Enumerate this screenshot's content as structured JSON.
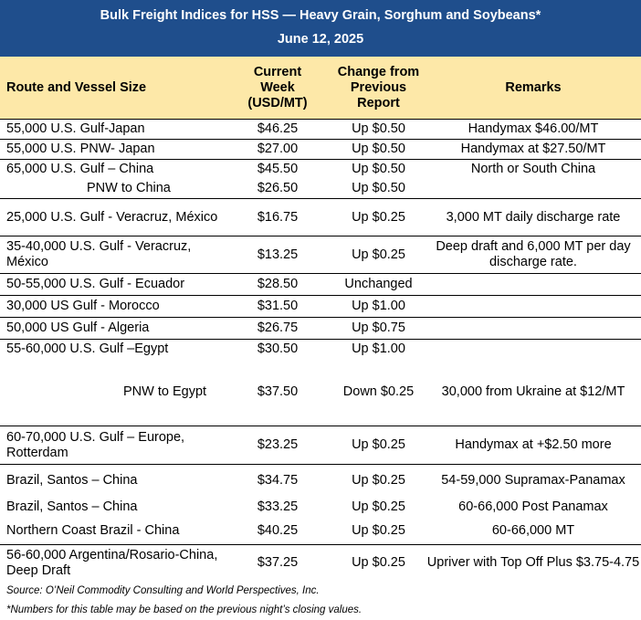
{
  "title": "Bulk Freight Indices for HSS — Heavy Grain, Sorghum and Soybeans*",
  "date": "June 12, 2025",
  "headers": {
    "route": "Route and Vessel Size",
    "current": [
      "Current",
      "Week",
      "(USD/MT)"
    ],
    "change": [
      "Change from",
      "Previous",
      "Report"
    ],
    "remarks": "Remarks"
  },
  "rows": [
    {
      "route": "55,000 U.S. Gulf-Japan",
      "price": "$46.25",
      "change": "Up $0.50",
      "remarks": "Handymax  $46.00/MT"
    },
    {
      "route": "55,000 U.S. PNW- Japan",
      "price": "$27.00",
      "change": "Up $0.50",
      "remarks": "Handymax at $27.50/MT"
    },
    {
      "route": "65,000 U.S. Gulf – China",
      "price": "$45.50",
      "change": "Up $0.50",
      "remarks": "North or South China"
    },
    {
      "route": "PNW to China",
      "price": "$26.50",
      "change": "Up $0.50",
      "remarks": ""
    },
    {
      "route": "25,000 U.S. Gulf - Veracruz, México",
      "price": "$16.75",
      "change": "Up $0.25",
      "remarks": "3,000 MT daily discharge rate"
    },
    {
      "route": "35-40,000 U.S. Gulf - Veracruz, México",
      "price": "$13.25",
      "change": "Up $0.25",
      "remarks": "Deep draft and 6,000 MT per day discharge rate."
    },
    {
      "route": "50-55,000 U.S. Gulf - Ecuador",
      "price": "$28.50",
      "change": "Unchanged",
      "remarks": ""
    },
    {
      "route": "30,000 US Gulf - Morocco",
      "price": "$31.50",
      "change": "Up $1.00",
      "remarks": ""
    },
    {
      "route": "50,000 US Gulf - Algeria",
      "price": "$26.75",
      "change": "Up $0.75",
      "remarks": ""
    },
    {
      "route": "55-60,000 U.S. Gulf –Egypt",
      "price": "$30.50",
      "change": "Up $1.00",
      "remarks": ""
    },
    {
      "route": "PNW to Egypt",
      "price": "$37.50",
      "change": "Down $0.25",
      "remarks": "30,000 from Ukraine at $12/MT"
    },
    {
      "route": "60-70,000 U.S. Gulf – Europe, Rotterdam",
      "price": "$23.25",
      "change": "Up $0.25",
      "remarks": "Handymax at +$2.50 more"
    },
    {
      "route": "Brazil, Santos – China",
      "price": "$34.75",
      "change": "Up $0.25",
      "remarks": "54-59,000 Supramax-Panamax"
    },
    {
      "route": "Brazil, Santos – China",
      "price": "$33.25",
      "change": "Up $0.25",
      "remarks": "60-66,000  Post Panamax"
    },
    {
      "route": "Northern Coast Brazil - China",
      "price": "$40.25",
      "change": "Up $0.25",
      "remarks": "60-66,000 MT"
    },
    {
      "route": "56-60,000 Argentina/Rosario-China, Deep Draft",
      "price": "$37.25",
      "change": "Up $0.25",
      "remarks": "Upriver with Top Off Plus $3.75-4.75"
    }
  ],
  "source": "Source: O’Neil Commodity Consulting and World Perspectives, Inc.",
  "footnote": "*Numbers for this table may be based on the previous night’s closing values."
}
